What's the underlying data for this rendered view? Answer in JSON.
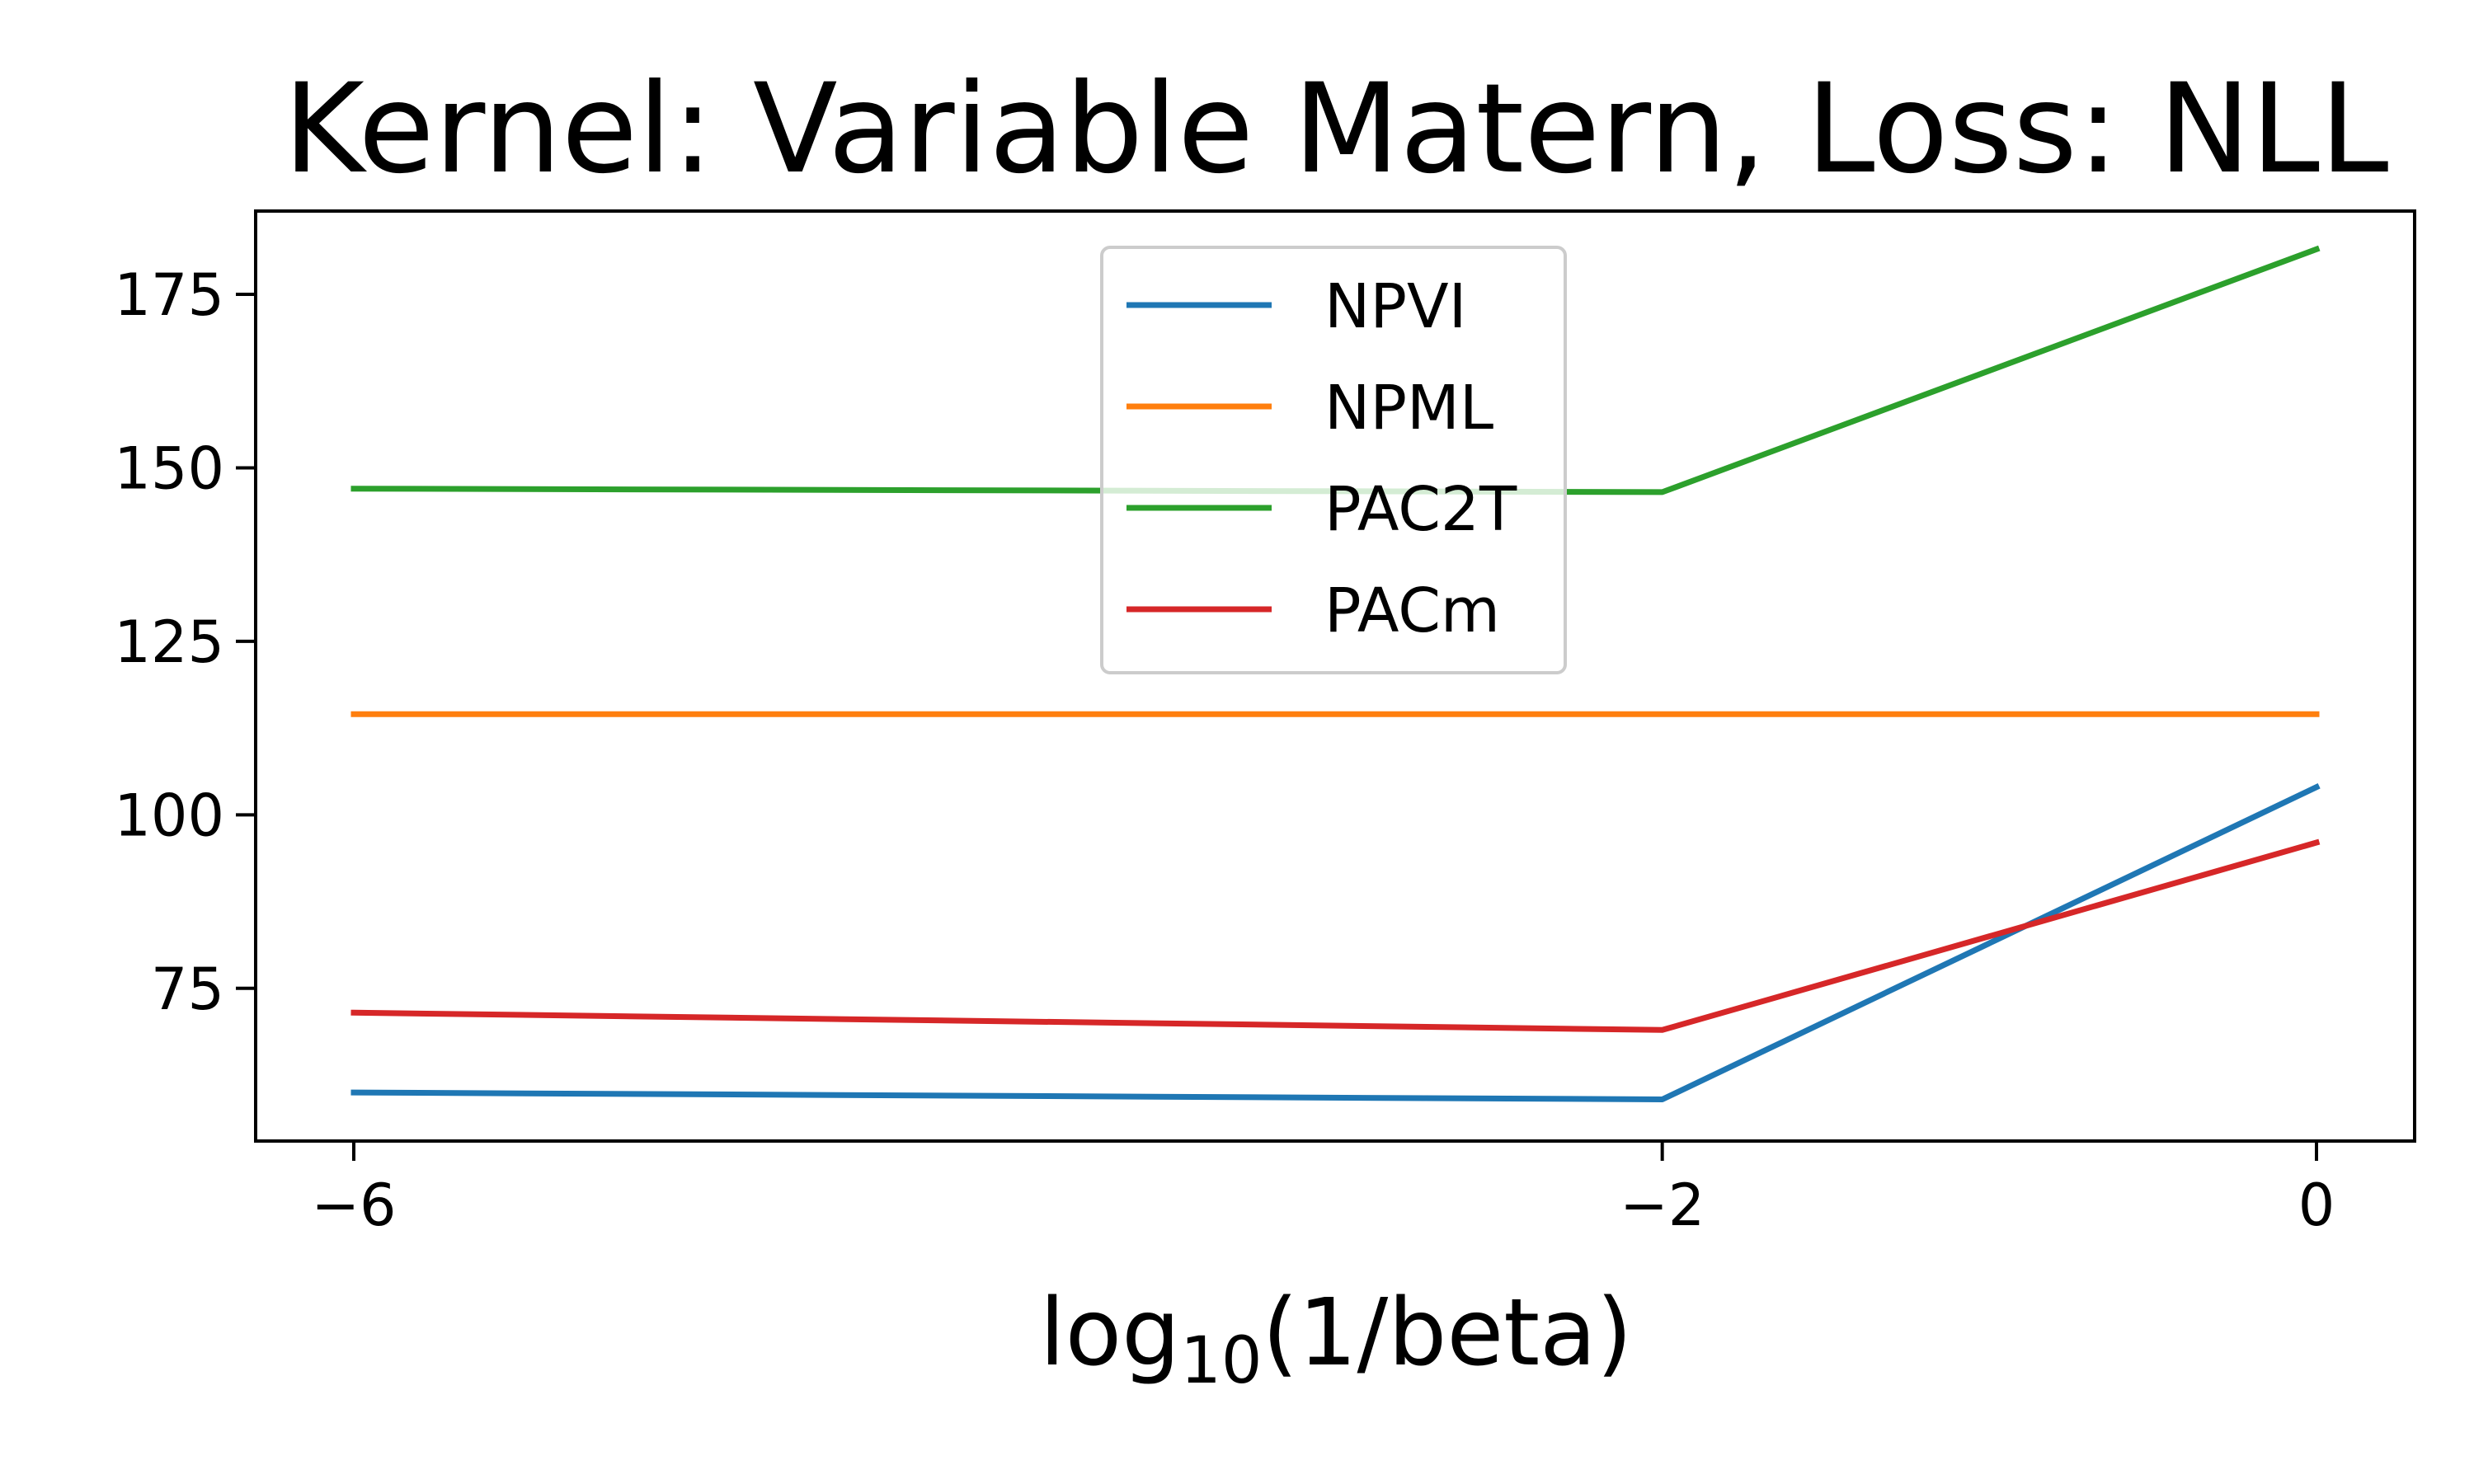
{
  "chart_data": {
    "type": "line",
    "title": "Kernel: Variable Matern, Loss: NLL",
    "xlabel": {
      "base": "log",
      "sub": "10",
      "rest": "(1/beta)"
    },
    "ylabel": "",
    "x": [
      -6,
      -2,
      0
    ],
    "xlim": [
      -6.3,
      0.3
    ],
    "ylim": [
      53,
      187
    ],
    "xticks": [
      -6,
      -2,
      0
    ],
    "xtick_labels": [
      "−6",
      "−2",
      "0"
    ],
    "yticks": [
      75,
      100,
      125,
      150,
      175
    ],
    "ytick_labels": [
      "75",
      "100",
      "125",
      "150",
      "175"
    ],
    "grid": false,
    "legend_position": "upper center",
    "series": [
      {
        "name": "NPVI",
        "color": "#1f77b4",
        "values": [
          60,
          59,
          104
        ]
      },
      {
        "name": "NPML",
        "color": "#ff7f0e",
        "values": [
          114.5,
          114.5,
          114.5
        ]
      },
      {
        "name": "PAC2T",
        "color": "#2ca02c",
        "values": [
          147,
          146.5,
          181.5
        ]
      },
      {
        "name": "PACm",
        "color": "#d62728",
        "values": [
          71.5,
          69,
          96
        ]
      }
    ]
  }
}
